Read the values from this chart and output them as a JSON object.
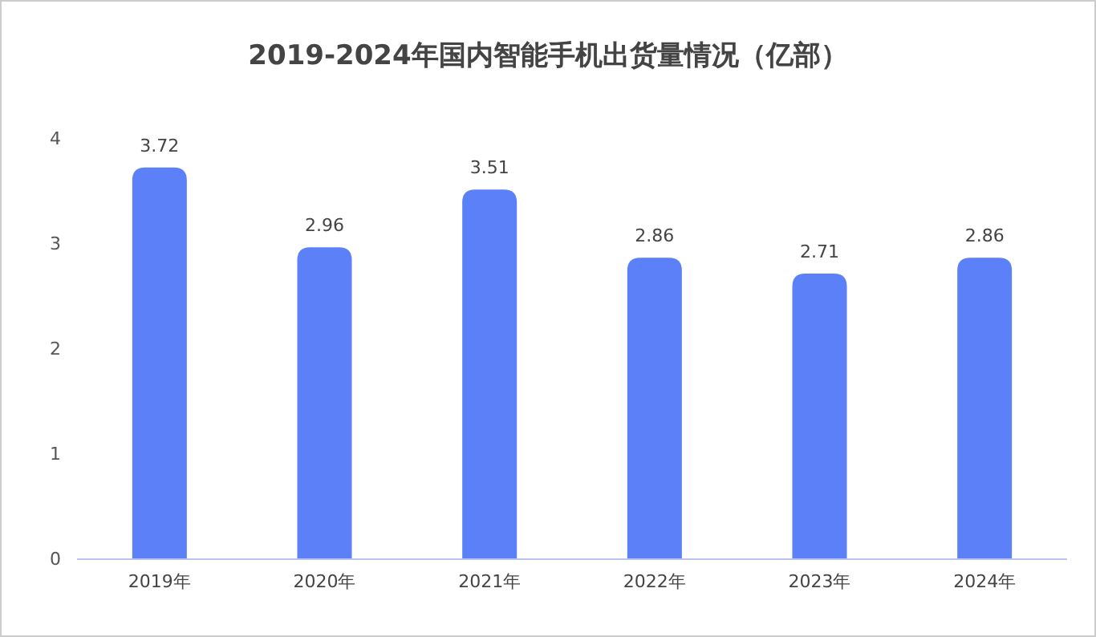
{
  "chart_data": {
    "type": "bar",
    "title": "2019-2024年国内智能手机出货量情况（亿部）",
    "categories": [
      "2019年",
      "2020年",
      "2021年",
      "2022年",
      "2023年",
      "2024年"
    ],
    "values": [
      3.72,
      2.96,
      3.51,
      2.86,
      2.71,
      2.86
    ],
    "color": "#5b80f7",
    "ylim": [
      0,
      4
    ],
    "yticks": [
      0,
      1,
      2,
      3,
      4
    ],
    "data_labels": true
  }
}
